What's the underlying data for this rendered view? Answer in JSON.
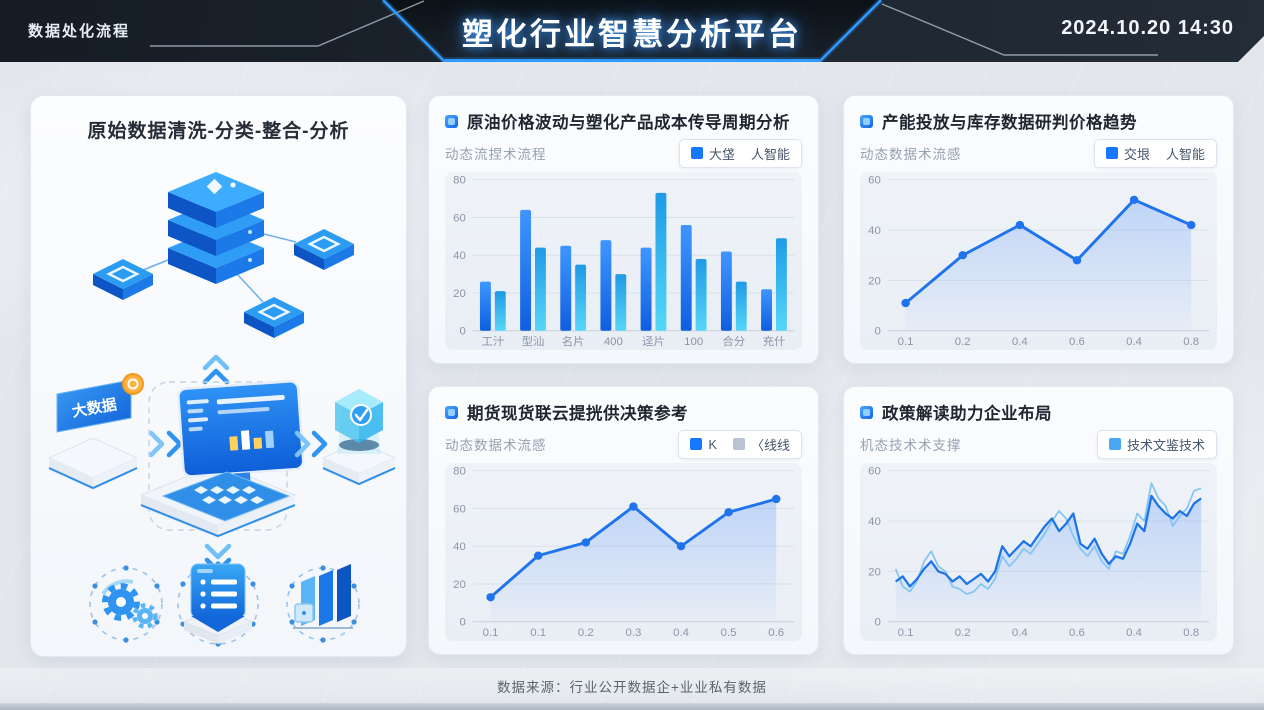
{
  "header": {
    "left_label": "数据处化流程",
    "title": "塑化行业智慧分析平台",
    "datetime": "2024.10.20 14:30"
  },
  "process_panel": {
    "title": "原始数据清洗-分类-整合-分析",
    "big_data_label": "大数据"
  },
  "panels": [
    {
      "title": "原油价格波动与塑化产品成本传导周期分析",
      "subtitle": "动态流捏术流程",
      "legend": [
        {
          "swatch": "#1677ff",
          "label": "大垡"
        },
        {
          "swatch": null,
          "label": "人智能"
        }
      ]
    },
    {
      "title": "产能投放与库存数据研判价格趋势",
      "subtitle": "动态数据术流感",
      "legend": [
        {
          "swatch": "#1677ff",
          "label": "交垠"
        },
        {
          "swatch": null,
          "label": "人智能"
        }
      ]
    },
    {
      "title": "期货现货联云提挄供决策参考",
      "subtitle": "动态数据术流感",
      "legend": [
        {
          "swatch": "#1677ff",
          "label": "K"
        },
        {
          "swatch": "#b9c3d2",
          "label": "〈线线"
        }
      ]
    },
    {
      "title": "政策解读助力企业布局",
      "subtitle": "机态技术术支撑",
      "legend": [
        {
          "swatch": "#4aa8f0",
          "label": "技术文鉴技术"
        }
      ]
    }
  ],
  "chart_data": [
    {
      "type": "bar",
      "title": "原油价格波动与塑化产品成本传导周期分析",
      "categories": [
        "工汁",
        "型汕",
        "名片",
        "400",
        "迳片",
        "100",
        "合分",
        "充什"
      ],
      "series": [
        {
          "name": "大垡",
          "color": "#1677ff",
          "values": [
            26,
            64,
            45,
            48,
            44,
            56,
            42,
            22
          ]
        },
        {
          "name": "人智能",
          "color": "#35c1f1",
          "values": [
            21,
            44,
            35,
            30,
            73,
            38,
            26,
            49
          ]
        }
      ],
      "ylim": [
        0,
        80
      ],
      "yticks": [
        0,
        20,
        40,
        60,
        80
      ],
      "grid": true,
      "legend_position": "top-right"
    },
    {
      "type": "line",
      "title": "产能投放与库存数据研判价格趋势",
      "x": [
        "0.1",
        "0.2",
        "0.4",
        "0.6",
        "0.4",
        "0.8"
      ],
      "values": [
        11,
        30,
        42,
        28,
        52,
        42
      ],
      "color": "#1f74ee",
      "markers": true,
      "area": true,
      "ylim": [
        0,
        60
      ],
      "yticks": [
        0,
        20,
        40,
        60
      ],
      "grid": true
    },
    {
      "type": "line",
      "title": "期货现货联云提挄供决策参考",
      "x": [
        "0.1",
        "0.1",
        "0.2",
        "0.3",
        "0.4",
        "0.5",
        "0.6"
      ],
      "values": [
        13,
        35,
        42,
        61,
        40,
        58,
        65
      ],
      "color": "#1f74ee",
      "markers": true,
      "area": true,
      "ylim": [
        0,
        80
      ],
      "yticks": [
        0,
        20,
        40,
        60,
        80
      ],
      "grid": true
    },
    {
      "type": "line",
      "title": "政策解读助力企业布局",
      "x_ticks": [
        "0.1",
        "0.2",
        "0.4",
        "0.6",
        "0.4",
        "0.8"
      ],
      "series": [
        {
          "color": "#1d74e8",
          "values": [
            16,
            18,
            14,
            17,
            21,
            24,
            20,
            19,
            16,
            18,
            15,
            17,
            19,
            16,
            20,
            30,
            26,
            29,
            32,
            30,
            34,
            38,
            41,
            36,
            39,
            43,
            31,
            29,
            33,
            27,
            23,
            26,
            25,
            31,
            39,
            36,
            50,
            46,
            43,
            41,
            44,
            42,
            47,
            49
          ]
        },
        {
          "color": "#86c5f2",
          "values": [
            21,
            14,
            12,
            16,
            24,
            28,
            22,
            20,
            14,
            13,
            11,
            12,
            15,
            13,
            17,
            26,
            22,
            25,
            29,
            27,
            31,
            35,
            40,
            44,
            41,
            34,
            29,
            26,
            30,
            24,
            21,
            28,
            27,
            34,
            43,
            40,
            55,
            49,
            46,
            38,
            42,
            45,
            52,
            53
          ]
        }
      ],
      "markers": false,
      "area": true,
      "ylim": [
        0,
        60
      ],
      "yticks": [
        0,
        20,
        40,
        60
      ],
      "grid": true
    }
  ],
  "footer": {
    "source": "数据来源：行业公开数据企+业业私有数据"
  },
  "colors": {
    "accent_blue": "#1677ff",
    "cyan": "#35c1f1",
    "light_line": "#86c5f2",
    "header_bg": "#1b222b",
    "page_bg": "#e3e7ec",
    "grid_line": "#d9e0ea"
  }
}
